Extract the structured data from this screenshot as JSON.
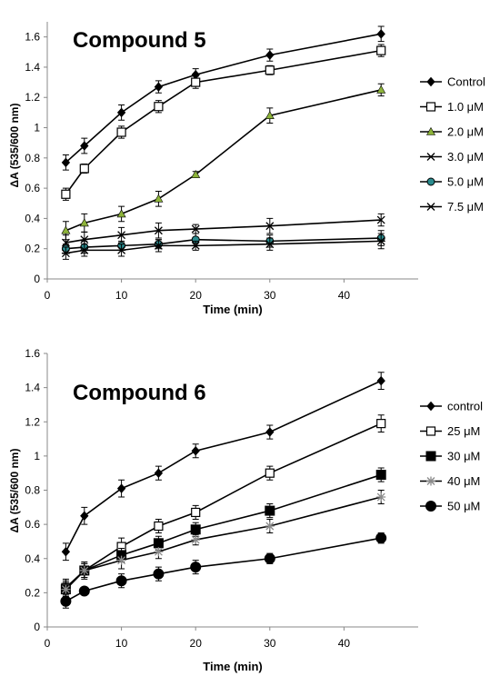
{
  "chart_data": [
    {
      "type": "line",
      "title": "Compound 5",
      "xlabel": "Time (min)",
      "ylabel": "ΔA (535/600 nm)",
      "xlim": [
        0,
        50
      ],
      "ylim": [
        0,
        1.7
      ],
      "xticks": [
        0,
        10,
        20,
        30,
        40
      ],
      "yticks": [
        0,
        0.2,
        0.4,
        0.6,
        0.8,
        1,
        1.2,
        1.4,
        1.6
      ],
      "ytick_labels": [
        "0",
        "0.2",
        "0.4",
        "0.6",
        "0.8",
        "1",
        "1.2",
        "1.4",
        "1.6"
      ],
      "grid": false,
      "legend_position": "right",
      "x": [
        2.5,
        5,
        10,
        15,
        20,
        30,
        45
      ],
      "series": [
        {
          "name": "Control",
          "marker": "diamond",
          "values": [
            0.77,
            0.88,
            1.1,
            1.27,
            1.35,
            1.48,
            1.62
          ],
          "errors": [
            0.05,
            0.05,
            0.05,
            0.04,
            0.04,
            0.04,
            0.05
          ]
        },
        {
          "name": "1.0 μM",
          "marker": "square-open",
          "values": [
            0.56,
            0.73,
            0.97,
            1.14,
            1.3,
            1.38,
            1.51
          ],
          "errors": [
            0.04,
            0.03,
            0.04,
            0.04,
            0.04,
            0.03,
            0.04
          ]
        },
        {
          "name": "2.0 μM",
          "marker": "triangle-green",
          "values": [
            0.32,
            0.37,
            0.43,
            0.53,
            0.69,
            1.08,
            1.25
          ],
          "errors": [
            0.06,
            0.06,
            0.05,
            0.05,
            0.02,
            0.05,
            0.04
          ]
        },
        {
          "name": "3.0 μM",
          "marker": "x",
          "values": [
            0.24,
            0.26,
            0.29,
            0.32,
            0.33,
            0.35,
            0.39
          ],
          "errors": [
            0.05,
            0.05,
            0.05,
            0.05,
            0.03,
            0.05,
            0.04
          ]
        },
        {
          "name": "5.0 μM",
          "marker": "circle-teal",
          "values": [
            0.2,
            0.21,
            0.22,
            0.23,
            0.26,
            0.25,
            0.27
          ],
          "errors": [
            0.03,
            0.04,
            0.03,
            0.03,
            0.04,
            0.04,
            0.05
          ]
        },
        {
          "name": "7.5 μM",
          "marker": "star",
          "values": [
            0.17,
            0.19,
            0.19,
            0.22,
            0.22,
            0.23,
            0.25
          ],
          "errors": [
            0.04,
            0.04,
            0.04,
            0.04,
            0.03,
            0.04,
            0.05
          ]
        }
      ]
    },
    {
      "type": "line",
      "title": "Compound 6",
      "xlabel": "Time (min)",
      "ylabel": "ΔA (535/600 nm)",
      "xlim": [
        0,
        50
      ],
      "ylim": [
        0,
        1.6
      ],
      "xticks": [
        0,
        10,
        20,
        30,
        40
      ],
      "yticks": [
        0,
        0.2,
        0.4,
        0.6,
        0.8,
        1,
        1.2,
        1.4,
        1.6
      ],
      "ytick_labels": [
        "0",
        "0.2",
        "0.4",
        "0.6",
        "0.8",
        "1",
        "1.2",
        "1.4",
        "1.6"
      ],
      "grid": false,
      "legend_position": "right",
      "x": [
        2.5,
        5,
        10,
        15,
        20,
        30,
        45
      ],
      "series": [
        {
          "name": "control",
          "marker": "diamond",
          "values": [
            0.44,
            0.65,
            0.81,
            0.9,
            1.03,
            1.14,
            1.44
          ],
          "errors": [
            0.05,
            0.05,
            0.05,
            0.04,
            0.04,
            0.04,
            0.05
          ]
        },
        {
          "name": "25 μM",
          "marker": "square-open",
          "values": [
            0.23,
            0.33,
            0.47,
            0.59,
            0.67,
            0.9,
            1.19
          ],
          "errors": [
            0.05,
            0.04,
            0.05,
            0.04,
            0.04,
            0.04,
            0.05
          ]
        },
        {
          "name": "30 μM",
          "marker": "square-filled",
          "values": [
            0.22,
            0.33,
            0.42,
            0.49,
            0.57,
            0.68,
            0.89
          ],
          "errors": [
            0.04,
            0.04,
            0.04,
            0.04,
            0.04,
            0.04,
            0.04
          ]
        },
        {
          "name": "40 μM",
          "marker": "star-gray",
          "values": [
            0.22,
            0.33,
            0.39,
            0.44,
            0.51,
            0.59,
            0.76
          ],
          "errors": [
            0.05,
            0.05,
            0.05,
            0.04,
            0.03,
            0.04,
            0.04
          ]
        },
        {
          "name": "50 μM",
          "marker": "circle-filled",
          "values": [
            0.15,
            0.21,
            0.27,
            0.31,
            0.35,
            0.4,
            0.52
          ],
          "errors": [
            0.04,
            0.02,
            0.04,
            0.04,
            0.04,
            0.03,
            0.03
          ]
        }
      ]
    }
  ]
}
